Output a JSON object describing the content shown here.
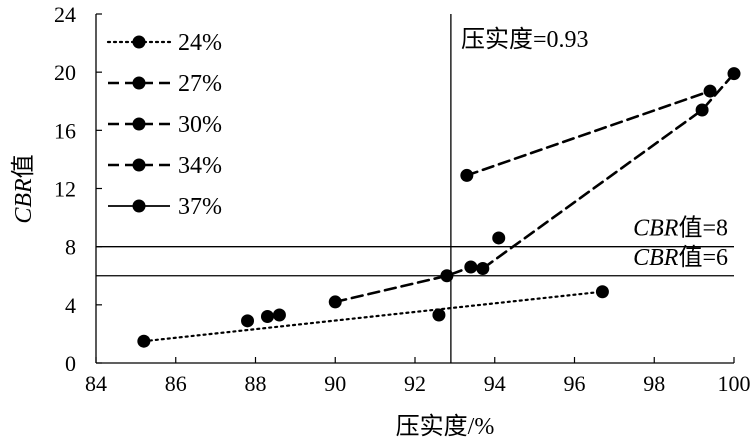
{
  "chart_data": {
    "type": "scatter",
    "title": "",
    "xlabel": "压实度/%",
    "ylabel": "CBR值",
    "ylabel_italic_part": "CBR",
    "ylabel_plain_part": "值",
    "xlim": [
      84,
      100
    ],
    "ylim": [
      0,
      24
    ],
    "x_ticks": [
      84,
      86,
      88,
      90,
      92,
      94,
      96,
      98,
      100
    ],
    "y_ticks": [
      0,
      4,
      8,
      12,
      16,
      20,
      24
    ],
    "x_tick_labels": [
      "84",
      "86",
      "88",
      "90",
      "92",
      "94",
      "96",
      "98",
      "100"
    ],
    "y_tick_labels": [
      "0",
      "4",
      "8",
      "12",
      "16",
      "20",
      "24"
    ],
    "grid": false,
    "legend_position": "top-left",
    "series": [
      {
        "name": "24%",
        "line_style": "dotted",
        "x": [
          85.2,
          92.6,
          96.7
        ],
        "y": [
          1.5,
          3.3,
          4.9
        ],
        "line_points": [
          [
            85.2,
            1.5
          ],
          [
            96.7,
            4.9
          ]
        ]
      },
      {
        "name": "27%",
        "line_style": "dashed",
        "x": [
          87.8,
          88.3,
          88.6
        ],
        "y": [
          2.9,
          3.2,
          3.3
        ],
        "line_points": []
      },
      {
        "name": "30%",
        "line_style": "dashed",
        "x": [
          90.0,
          92.8,
          93.4,
          93.7,
          94.1,
          99.2,
          99.4,
          100.0
        ],
        "y": [
          4.2,
          6.0,
          6.6,
          6.5,
          8.6,
          17.4,
          18.7,
          19.9
        ],
        "line_points": [
          [
            90.0,
            4.2
          ],
          [
            92.8,
            6.0
          ],
          [
            93.4,
            6.6
          ],
          [
            93.7,
            6.5
          ],
          [
            99.2,
            17.4
          ],
          [
            100.0,
            19.9
          ]
        ]
      },
      {
        "name": "34%",
        "line_style": "dashed",
        "x": [
          93.3
        ],
        "y": [
          12.9
        ],
        "line_points": [
          [
            93.3,
            12.9
          ],
          [
            99.4,
            18.7
          ]
        ]
      },
      {
        "name": "37%",
        "line_style": "solid",
        "x": [],
        "y": [],
        "line_points": []
      }
    ],
    "reference_lines": [
      {
        "orientation": "vertical",
        "value": 92.9,
        "label": "压实度=0.93"
      },
      {
        "orientation": "horizontal",
        "value": 8,
        "label_italic": "CBR",
        "label_rest": "值=8"
      },
      {
        "orientation": "horizontal",
        "value": 6,
        "label_italic": "CBR",
        "label_rest": "值=6"
      }
    ]
  }
}
